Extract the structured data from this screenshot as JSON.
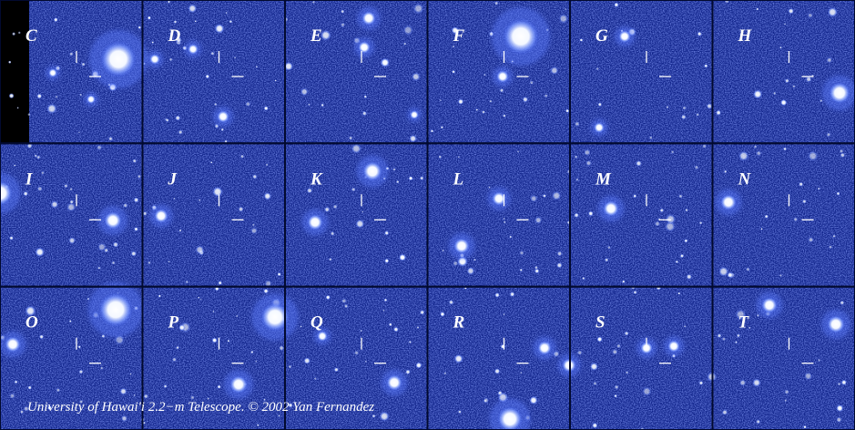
{
  "panels": [
    {
      "label": "C"
    },
    {
      "label": "D"
    },
    {
      "label": "E"
    },
    {
      "label": "F"
    },
    {
      "label": "G"
    },
    {
      "label": "H"
    },
    {
      "label": "I"
    },
    {
      "label": "J"
    },
    {
      "label": "K"
    },
    {
      "label": "L"
    },
    {
      "label": "M"
    },
    {
      "label": "N"
    },
    {
      "label": "O"
    },
    {
      "label": "P"
    },
    {
      "label": "Q"
    },
    {
      "label": "R"
    },
    {
      "label": "S"
    },
    {
      "label": "T"
    }
  ],
  "caption": "University of Hawai'i 2.2−m Telescope. © 2002 Yan Fernandez"
}
